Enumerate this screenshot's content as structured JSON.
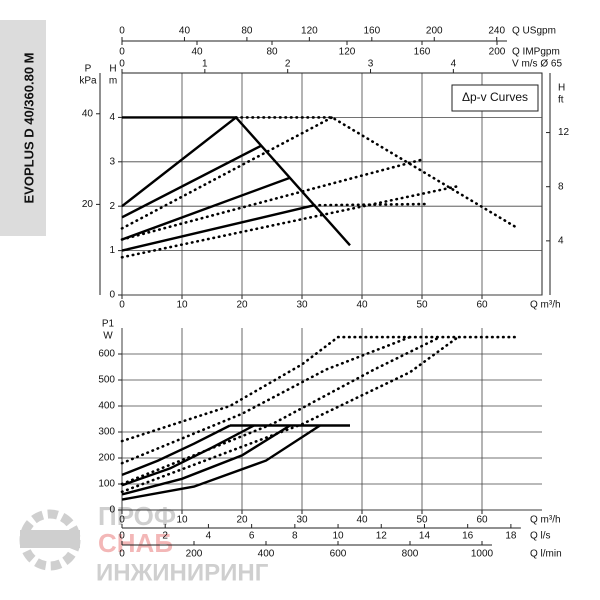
{
  "title": "EVOPLUS D 40/360.80 M",
  "watermark": {
    "line1": "ПРОФ",
    "line2": "СНАБ",
    "line3": "ИНЖИНИРИНГ"
  },
  "chart_data": [
    {
      "type": "line",
      "annotation": "Δp-v Curves",
      "x_label": "Q m³/h",
      "xlim": [
        0,
        70
      ],
      "xticks": [
        0,
        10,
        20,
        30,
        40,
        50,
        60
      ],
      "y_label": "H",
      "y_unit": "m",
      "ylim": [
        0,
        5
      ],
      "yticks": [
        0,
        1,
        2,
        3,
        4
      ],
      "y2_label": "P",
      "y2_unit": "kPa",
      "y2lim": [
        0,
        49
      ],
      "y2ticks": [
        20,
        40
      ],
      "y3_label": "H",
      "y3_unit": "ft",
      "y3lim": [
        0,
        16.4
      ],
      "y3ticks": [
        4,
        8,
        12
      ],
      "x2_label": "Q USgpm",
      "x2lim": [
        0,
        269
      ],
      "x2ticks": [
        0,
        40,
        80,
        120,
        160,
        200,
        240
      ],
      "x3_label": "Q IMPgpm",
      "x3lim": [
        0,
        224
      ],
      "x3ticks": [
        0,
        40,
        80,
        120,
        160,
        200
      ],
      "x4_label": "V m/s Ø 65",
      "x4lim": [
        0,
        5.07
      ],
      "x4ticks": [
        0,
        1,
        2,
        3,
        4
      ],
      "grid": true,
      "series": [
        {
          "color": "#000000",
          "line_style": "solid",
          "x": [
            0,
            19,
            38
          ],
          "values": [
            4,
            4,
            1.12
          ]
        },
        {
          "color": "#000000",
          "line_style": "solid",
          "x": [
            0,
            19
          ],
          "values": [
            2,
            4
          ]
        },
        {
          "color": "#000000",
          "line_style": "solid",
          "x": [
            0,
            23.3
          ],
          "values": [
            1.75,
            3.37
          ]
        },
        {
          "color": "#000000",
          "line_style": "solid",
          "x": [
            0,
            28
          ],
          "values": [
            1.25,
            2.64
          ]
        },
        {
          "color": "#000000",
          "line_style": "solid",
          "x": [
            0,
            32
          ],
          "values": [
            1,
            2.02
          ]
        },
        {
          "color": "#000000",
          "line_style": "dotted",
          "x": [
            19,
            35,
            66
          ],
          "values": [
            4,
            4,
            1.5
          ]
        },
        {
          "color": "#000000",
          "line_style": "dotted",
          "x": [
            0,
            35
          ],
          "values": [
            1.5,
            4
          ]
        },
        {
          "color": "#000000",
          "line_style": "dotted",
          "x": [
            0,
            50
          ],
          "values": [
            1.25,
            3.05
          ]
        },
        {
          "color": "#000000",
          "line_style": "dotted",
          "x": [
            0,
            56
          ],
          "values": [
            0.85,
            2.45
          ]
        },
        {
          "color": "#000000",
          "line_style": "dotted",
          "x": [
            32,
            51
          ],
          "values": [
            2.02,
            2.05
          ]
        }
      ]
    },
    {
      "type": "line",
      "x_label": "Q m³/h",
      "xlim": [
        0,
        70
      ],
      "xticks": [
        0,
        10,
        20,
        30,
        40,
        50,
        60
      ],
      "y_label": "P1",
      "y_unit": "W",
      "ylim": [
        0,
        700
      ],
      "yticks": [
        0,
        100,
        200,
        300,
        400,
        500,
        600
      ],
      "x2_label": "Q l/s",
      "x2lim": [
        0,
        19.44
      ],
      "x2ticks": [
        0,
        2,
        4,
        6,
        8,
        10,
        12,
        14,
        16,
        18
      ],
      "x3_label": "Q l/min",
      "x3lim": [
        0,
        1166.7
      ],
      "x3ticks": [
        0,
        200,
        400,
        600,
        800,
        1000
      ],
      "grid": true,
      "series": [
        {
          "color": "#000000",
          "line_style": "solid",
          "x": [
            18,
            38
          ],
          "values": [
            325,
            325
          ]
        },
        {
          "color": "#000000",
          "line_style": "solid",
          "x": [
            0,
            6,
            12,
            18
          ],
          "values": [
            135,
            190,
            255,
            325
          ]
        },
        {
          "color": "#000000",
          "line_style": "solid",
          "x": [
            0,
            8,
            15,
            22
          ],
          "values": [
            95,
            160,
            240,
            325
          ]
        },
        {
          "color": "#000000",
          "line_style": "solid",
          "x": [
            0,
            10,
            20,
            28
          ],
          "values": [
            60,
            120,
            210,
            325
          ]
        },
        {
          "color": "#000000",
          "line_style": "solid",
          "x": [
            0,
            12,
            24,
            33
          ],
          "values": [
            40,
            90,
            190,
            325
          ]
        },
        {
          "color": "#000000",
          "line_style": "dotted",
          "x": [
            0,
            18,
            30,
            36,
            66
          ],
          "values": [
            265,
            400,
            560,
            665,
            665
          ]
        },
        {
          "color": "#000000",
          "line_style": "dotted",
          "x": [
            0,
            20,
            34,
            48
          ],
          "values": [
            180,
            370,
            540,
            665
          ]
        },
        {
          "color": "#000000",
          "line_style": "dotted",
          "x": [
            0,
            25,
            42,
            53
          ],
          "values": [
            100,
            330,
            540,
            665
          ]
        },
        {
          "color": "#000000",
          "line_style": "dotted",
          "x": [
            0,
            30,
            48,
            56
          ],
          "values": [
            70,
            330,
            530,
            665
          ]
        }
      ]
    }
  ]
}
